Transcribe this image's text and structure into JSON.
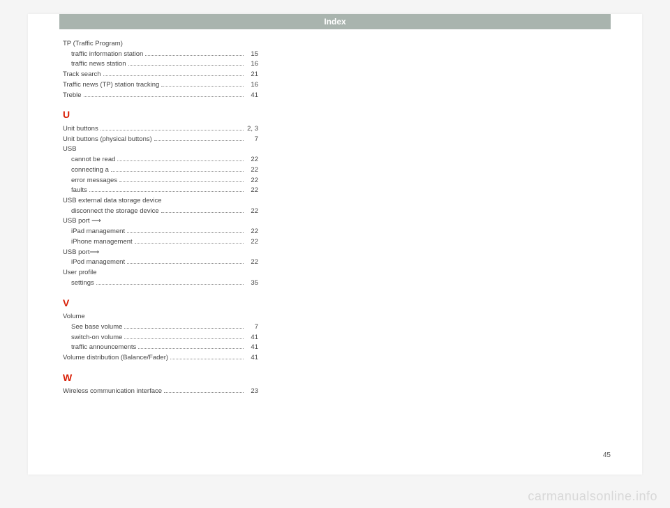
{
  "header": "Index",
  "page_number": "45",
  "watermark": "carmanualsonline.info",
  "sections": [
    {
      "letter": null,
      "entries": [
        {
          "label": "TP (Traffic Program)",
          "page": null,
          "sub": false
        },
        {
          "label": "traffic information station",
          "page": "15",
          "sub": true
        },
        {
          "label": "traffic news station",
          "page": "16",
          "sub": true
        },
        {
          "label": "Track search",
          "page": "21",
          "sub": false
        },
        {
          "label": "Traffic news (TP) station tracking",
          "page": "16",
          "sub": false
        },
        {
          "label": "Treble",
          "page": "41",
          "sub": false
        }
      ]
    },
    {
      "letter": "U",
      "entries": [
        {
          "label": "Unit buttons",
          "page": "2, 3",
          "sub": false
        },
        {
          "label": "Unit buttons (physical buttons)",
          "page": "7",
          "sub": false
        },
        {
          "label": "USB",
          "page": null,
          "sub": false
        },
        {
          "label": "cannot be read",
          "page": "22",
          "sub": true
        },
        {
          "label": "connecting a",
          "page": "22",
          "sub": true
        },
        {
          "label": "error messages",
          "page": "22",
          "sub": true
        },
        {
          "label": "faults",
          "page": "22",
          "sub": true
        },
        {
          "label": "USB external data storage device",
          "page": null,
          "sub": false
        },
        {
          "label": "disconnect the storage device",
          "page": "22",
          "sub": true
        },
        {
          "label": "USB port ⟶",
          "page": null,
          "sub": false
        },
        {
          "label": "iPad management",
          "page": "22",
          "sub": true
        },
        {
          "label": "iPhone management",
          "page": "22",
          "sub": true
        },
        {
          "label": "USB port⟶",
          "page": null,
          "sub": false
        },
        {
          "label": "iPod management",
          "page": "22",
          "sub": true
        },
        {
          "label": "User profile",
          "page": null,
          "sub": false
        },
        {
          "label": "settings",
          "page": "35",
          "sub": true
        }
      ]
    },
    {
      "letter": "V",
      "entries": [
        {
          "label": "Volume",
          "page": null,
          "sub": false
        },
        {
          "label": "See base volume",
          "page": "7",
          "sub": true
        },
        {
          "label": "switch-on volume",
          "page": "41",
          "sub": true
        },
        {
          "label": "traffic announcements",
          "page": "41",
          "sub": true
        },
        {
          "label": "Volume distribution (Balance/Fader)",
          "page": "41",
          "sub": false
        }
      ]
    },
    {
      "letter": "W",
      "entries": [
        {
          "label": "Wireless communication interface",
          "page": "23",
          "sub": false
        }
      ]
    }
  ]
}
